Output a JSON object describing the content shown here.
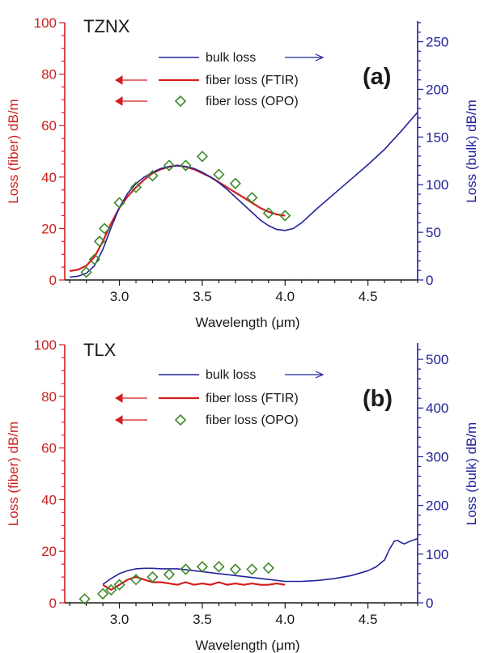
{
  "colors": {
    "left_axis": "#cc1f1f",
    "right_axis": "#1f1f99",
    "bulk": "#23239b",
    "ftir": "#d41c1c",
    "opo": "#3c8a2a",
    "black": "#1a1a1a"
  },
  "chart_data": [
    {
      "type": "line",
      "label": "(a)",
      "glass": "TZNX",
      "xlabel": "Wavelength (μm)",
      "ylabel_left": "Loss (fiber) dB/m",
      "ylabel_right": "Loss (bulk) dB/m",
      "xlim": [
        2.67,
        4.8
      ],
      "ylim_left": [
        0,
        100
      ],
      "ylim_right": [
        0,
        270
      ],
      "x_ticks": [
        "3.0",
        "3.5",
        "4.0",
        "4.5"
      ],
      "y_ticks_left": [
        "0",
        "20",
        "40",
        "60",
        "80",
        "100"
      ],
      "y_ticks_right": [
        "0",
        "50",
        "100",
        "150",
        "200",
        "250"
      ],
      "legend": {
        "position": "top-center",
        "bulk": "bulk loss",
        "ftir": "fiber loss (FTIR)",
        "opo": "fiber loss (OPO)"
      },
      "series": [
        {
          "name": "bulk loss",
          "axis": "right",
          "x": [
            2.7,
            2.75,
            2.8,
            2.85,
            2.9,
            2.95,
            3.0,
            3.05,
            3.1,
            3.15,
            3.2,
            3.25,
            3.3,
            3.35,
            3.4,
            3.45,
            3.5,
            3.55,
            3.6,
            3.65,
            3.7,
            3.75,
            3.8,
            3.85,
            3.9,
            3.95,
            4.0,
            4.05,
            4.1,
            4.15,
            4.2,
            4.3,
            4.4,
            4.5,
            4.6,
            4.7,
            4.8
          ],
          "y": [
            3,
            4,
            7,
            15,
            32,
            55,
            76,
            91,
            101,
            108,
            113,
            117,
            119,
            120,
            119,
            117,
            113,
            108,
            102,
            95,
            87,
            79,
            71,
            63,
            57,
            53,
            52,
            54,
            60,
            68,
            76,
            91,
            106,
            121,
            137,
            156,
            176
          ]
        },
        {
          "name": "fiber loss (FTIR)",
          "axis": "left",
          "x": [
            2.7,
            2.75,
            2.8,
            2.85,
            2.9,
            2.95,
            3.0,
            3.05,
            3.1,
            3.15,
            3.2,
            3.25,
            3.3,
            3.35,
            3.4,
            3.45,
            3.5,
            3.55,
            3.6,
            3.65,
            3.7,
            3.75,
            3.8,
            3.85,
            3.9,
            3.95,
            4.0
          ],
          "y": [
            3.5,
            4,
            5.5,
            9,
            15,
            22,
            28,
            32.5,
            36,
            39,
            41.5,
            43,
            44,
            44.5,
            44,
            43,
            41.5,
            40,
            38,
            36,
            34,
            32,
            30,
            28,
            26.5,
            25.5,
            25
          ]
        },
        {
          "name": "fiber loss (OPO)",
          "axis": "left",
          "x": [
            2.8,
            2.85,
            2.88,
            2.91,
            3.0,
            3.1,
            3.2,
            3.3,
            3.4,
            3.5,
            3.6,
            3.7,
            3.8,
            3.9,
            4.0
          ],
          "y": [
            3,
            8,
            15,
            20,
            30,
            36,
            40.5,
            44.5,
            44.5,
            48,
            41,
            37.5,
            32,
            26,
            25
          ]
        }
      ]
    },
    {
      "type": "line",
      "label": "(b)",
      "glass": "TLX",
      "xlabel": "Wavelength (μm)",
      "ylabel_left": "Loss (fiber) dB/m",
      "ylabel_right": "Loss (bulk) dB/m",
      "xlim": [
        2.67,
        4.8
      ],
      "ylim_left": [
        0,
        100
      ],
      "ylim_right": [
        0,
        530
      ],
      "x_ticks": [
        "3.0",
        "3.5",
        "4.0",
        "4.5"
      ],
      "y_ticks_left": [
        "0",
        "20",
        "40",
        "60",
        "80",
        "100"
      ],
      "y_ticks_right": [
        "0",
        "100",
        "200",
        "300",
        "400",
        "500"
      ],
      "legend": {
        "position": "top-center",
        "bulk": "bulk loss",
        "ftir": "fiber loss (FTIR)",
        "opo": "fiber loss (OPO)"
      },
      "series": [
        {
          "name": "bulk loss",
          "axis": "right",
          "x": [
            2.9,
            2.95,
            3.0,
            3.05,
            3.1,
            3.15,
            3.2,
            3.25,
            3.3,
            3.35,
            3.4,
            3.45,
            3.5,
            3.6,
            3.7,
            3.8,
            3.9,
            4.0,
            4.1,
            4.2,
            4.3,
            4.4,
            4.5,
            4.55,
            4.6,
            4.63,
            4.66,
            4.68,
            4.7,
            4.72,
            4.75,
            4.8
          ],
          "y": [
            38,
            50,
            60,
            66,
            70,
            71,
            71,
            70,
            70,
            70,
            68,
            66,
            64,
            60,
            56,
            52,
            48,
            44,
            44,
            46,
            50,
            56,
            66,
            74,
            88,
            110,
            127,
            128,
            124,
            121,
            126,
            132
          ]
        },
        {
          "name": "fiber loss (FTIR)",
          "axis": "left",
          "x": [
            2.9,
            2.95,
            3.0,
            3.05,
            3.1,
            3.15,
            3.2,
            3.25,
            3.3,
            3.35,
            3.4,
            3.45,
            3.5,
            3.55,
            3.6,
            3.65,
            3.7,
            3.75,
            3.8,
            3.85,
            3.9,
            3.95,
            4.0
          ],
          "y": [
            7,
            5,
            7,
            9,
            10,
            9,
            8,
            8,
            7.5,
            7,
            8,
            7,
            7.5,
            7,
            8,
            7,
            7.5,
            7,
            7.5,
            7,
            7,
            7.5,
            7
          ]
        },
        {
          "name": "fiber loss (OPO)",
          "axis": "left",
          "x": [
            2.79,
            2.9,
            2.95,
            3.0,
            3.1,
            3.2,
            3.3,
            3.4,
            3.5,
            3.6,
            3.7,
            3.8,
            3.9
          ],
          "y": [
            1.5,
            3.5,
            5,
            7,
            9,
            10,
            11,
            13,
            14,
            14,
            13,
            13,
            13.5
          ]
        }
      ]
    }
  ]
}
